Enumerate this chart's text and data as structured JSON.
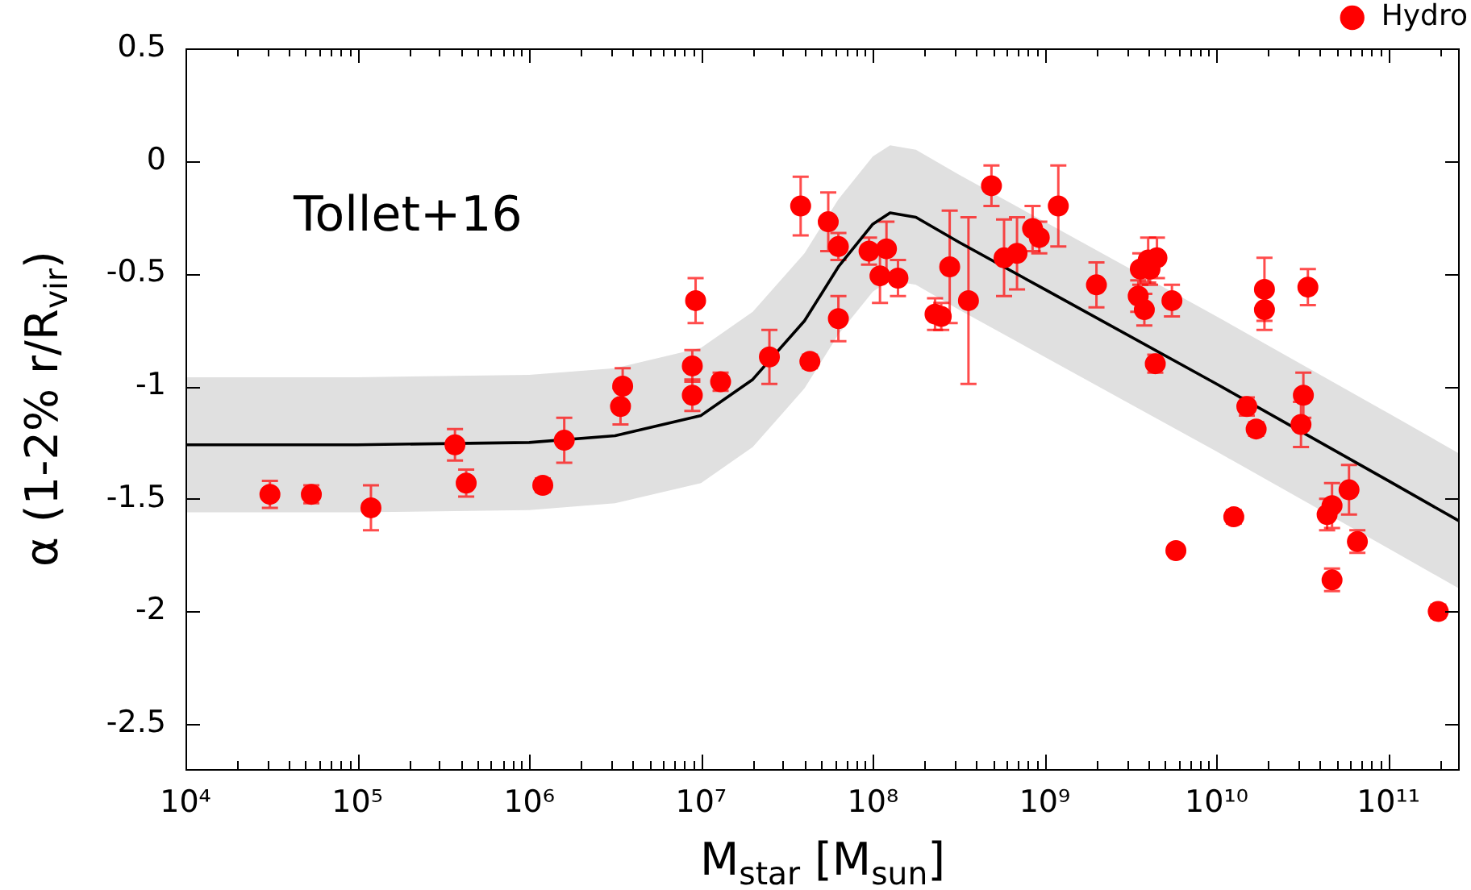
{
  "chart_data": {
    "type": "scatter",
    "xlabel": "M$_{star}$ [M$_{sun}$]",
    "ylabel": "α (1-2% r/R$_{vir}$)",
    "annotations": [
      "Tollet+16"
    ],
    "log": "x",
    "legend": "top right",
    "marker": "circle",
    "xlim": [
      10000,
      260000000000
    ],
    "ylim": [
      -2.7,
      0.5
    ],
    "xticks": [
      {
        "value": 10000,
        "label": "10⁴"
      },
      {
        "value": 100000,
        "label": "10⁵"
      },
      {
        "value": 1000000,
        "label": "10⁶"
      },
      {
        "value": 10000000,
        "label": "10⁷"
      },
      {
        "value": 100000000,
        "label": "10⁸"
      },
      {
        "value": 1000000000,
        "label": "10⁹"
      },
      {
        "value": 10000000000,
        "label": "10¹⁰"
      },
      {
        "value": 100000000000,
        "label": "10¹¹"
      }
    ],
    "yticks": [
      0.5,
      0,
      -0.5,
      -1,
      -1.5,
      -2,
      -2.5
    ],
    "series": [
      {
        "name": "Hydro",
        "color": "#ff0000",
        "x": [
          31000,
          54000,
          120000,
          370000,
          430000,
          1200000,
          1600000,
          3500000,
          3400000,
          8900000,
          8900000,
          9300000,
          13000000,
          25000000,
          43000000,
          38000000,
          55000000,
          63000000,
          63000000,
          95000000,
          110000000,
          120000000,
          140000000,
          230000000,
          250000000,
          280000000,
          360000000,
          490000000,
          580000000,
          690000000,
          850000000,
          930000000,
          1200000000,
          2000000000,
          3500000000,
          3800000000,
          3600000000,
          4100000000,
          4000000000,
          4500000000,
          4400000000,
          5500000000,
          5800000000,
          12600000000,
          15000000000,
          17000000000,
          19000000000,
          19000000000,
          32000000000,
          31000000000,
          34000000000,
          47000000000,
          44000000000,
          59000000000,
          66000000000,
          47000000000,
          195000000000
        ],
        "values": [
          -1.48,
          -1.48,
          -1.54,
          -1.26,
          -1.43,
          -1.44,
          -1.24,
          -1.0,
          -1.09,
          -0.91,
          -1.04,
          -0.62,
          -0.98,
          -0.87,
          -0.89,
          -0.2,
          -0.27,
          -0.38,
          -0.7,
          -0.4,
          -0.51,
          -0.39,
          -0.52,
          -0.68,
          -0.69,
          -0.47,
          -0.62,
          -0.11,
          -0.43,
          -0.41,
          -0.3,
          -0.34,
          -0.2,
          -0.55,
          -0.6,
          -0.66,
          -0.48,
          -0.48,
          -0.44,
          -0.43,
          -0.9,
          -0.62,
          -1.73,
          -1.58,
          -1.09,
          -1.19,
          -0.57,
          -0.66,
          -1.04,
          -1.17,
          -0.56,
          -1.53,
          -1.57,
          -1.46,
          -1.69,
          -1.86,
          -2.0
        ],
        "errors": [
          0.06,
          0.04,
          0.1,
          0.07,
          0.06,
          0.03,
          0.1,
          0.08,
          0.08,
          0.07,
          0.07,
          0.1,
          0.04,
          0.12,
          0.03,
          0.13,
          0.13,
          0.06,
          0.1,
          0.06,
          0.12,
          0.12,
          0.08,
          0.07,
          0.06,
          0.25,
          0.37,
          0.09,
          0.17,
          0.16,
          0.1,
          0.07,
          0.18,
          0.1,
          0.07,
          0.07,
          0.07,
          0.07,
          0.1,
          0.09,
          0.04,
          0.07,
          0.02,
          0.03,
          0.04,
          0.03,
          0.14,
          0.09,
          0.1,
          0.1,
          0.08,
          0.1,
          0.07,
          0.11,
          0.05,
          0.05,
          0.03
        ]
      },
      {
        "type": "line",
        "color": "#000000",
        "marker": "none",
        "x": [
          10000,
          100000,
          1000000,
          3160000,
          10000000,
          20000000,
          40000000,
          63000000,
          100000000,
          126000000,
          178000000,
          316000000,
          1000000000,
          10000000000,
          100000000000,
          260000000000
        ],
        "values": [
          -1.26,
          -1.26,
          -1.25,
          -1.22,
          -1.13,
          -0.97,
          -0.71,
          -0.47,
          -0.28,
          -0.23,
          -0.25,
          -0.36,
          -0.57,
          -0.99,
          -1.42,
          -1.6
        ],
        "upper": [
          -0.96,
          -0.96,
          -0.95,
          -0.92,
          -0.83,
          -0.67,
          -0.41,
          -0.17,
          0.02,
          0.07,
          0.05,
          -0.06,
          -0.27,
          -0.69,
          -1.12,
          -1.3
        ],
        "lower": [
          -1.56,
          -1.56,
          -1.55,
          -1.52,
          -1.43,
          -1.27,
          -1.01,
          -0.77,
          -0.58,
          -0.53,
          -0.55,
          -0.66,
          -0.87,
          -1.29,
          -1.72,
          -1.9
        ]
      }
    ]
  }
}
